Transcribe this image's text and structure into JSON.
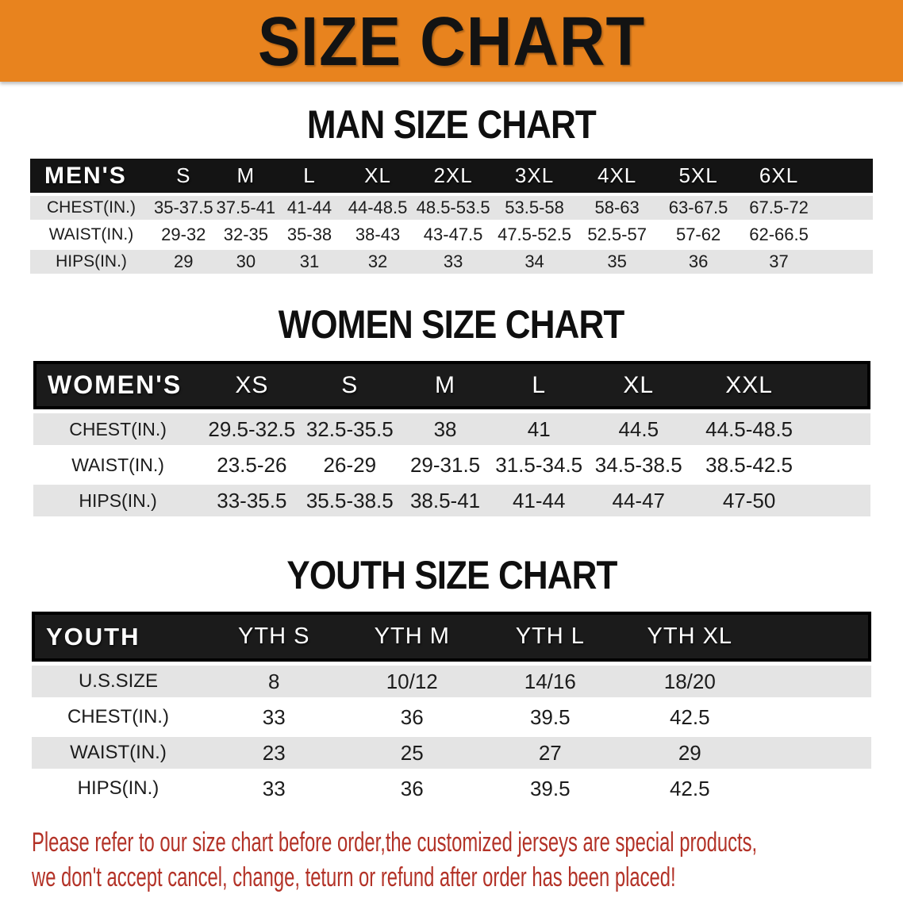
{
  "banner": {
    "title": "SIZE CHART",
    "bg_color": "#E8831E",
    "text_color": "#131313"
  },
  "sections": [
    {
      "heading": "MAN SIZE CHART",
      "table": {
        "header": [
          "MEN'S",
          "S",
          "M",
          "L",
          "XL",
          "2XL",
          "3XL",
          "4XL",
          "5XL",
          "6XL"
        ],
        "rows": [
          {
            "label": "CHEST(IN.)",
            "values": [
              "35-37.5",
              "37.5-41",
              "41-44",
              "44-48.5",
              "48.5-53.5",
              "53.5-58",
              "58-63",
              "63-67.5",
              "67.5-72"
            ]
          },
          {
            "label": "WAIST(IN.)",
            "values": [
              "29-32",
              "32-35",
              "35-38",
              "38-43",
              "43-47.5",
              "47.5-52.5",
              "52.5-57",
              "57-62",
              "62-66.5"
            ]
          },
          {
            "label": "HIPS(IN.)",
            "values": [
              "29",
              "30",
              "31",
              "32",
              "33",
              "34",
              "35",
              "36",
              "37"
            ]
          }
        ]
      }
    },
    {
      "heading": "WOMEN SIZE CHART",
      "table": {
        "header": [
          "WOMEN'S",
          "XS",
          "S",
          "M",
          "L",
          "XL",
          "XXL"
        ],
        "rows": [
          {
            "label": "CHEST(IN.)",
            "values": [
              "29.5-32.5",
              "32.5-35.5",
              "38",
              "41",
              "44.5",
              "44.5-48.5"
            ]
          },
          {
            "label": "WAIST(IN.)",
            "values": [
              "23.5-26",
              "26-29",
              "29-31.5",
              "31.5-34.5",
              "34.5-38.5",
              "38.5-42.5"
            ]
          },
          {
            "label": "HIPS(IN.)",
            "values": [
              "33-35.5",
              "35.5-38.5",
              "38.5-41",
              "41-44",
              "44-47",
              "47-50"
            ]
          }
        ]
      }
    },
    {
      "heading": "YOUTH SIZE CHART",
      "table": {
        "header": [
          "YOUTH",
          "YTH S",
          "YTH M",
          "YTH L",
          "YTH XL"
        ],
        "rows": [
          {
            "label": "U.S.SIZE",
            "values": [
              "8",
              "10/12",
              "14/16",
              "18/20"
            ]
          },
          {
            "label": "CHEST(IN.)",
            "values": [
              "33",
              "36",
              "39.5",
              "42.5"
            ]
          },
          {
            "label": "WAIST(IN.)",
            "values": [
              "23",
              "25",
              "27",
              "29"
            ]
          },
          {
            "label": "HIPS(IN.)",
            "values": [
              "33",
              "36",
              "39.5",
              "42.5"
            ]
          }
        ]
      }
    }
  ],
  "footer": {
    "line1": "Please refer to our size chart before order,the customized jerseys are special products,",
    "line2": "we don't accept cancel, change, teturn or refund after order has been placed!",
    "text_color": "#B33227"
  },
  "colors": {
    "header_bar": "#141414",
    "row_gray": "#E4E4E4",
    "row_white": "#FFFFFF"
  }
}
